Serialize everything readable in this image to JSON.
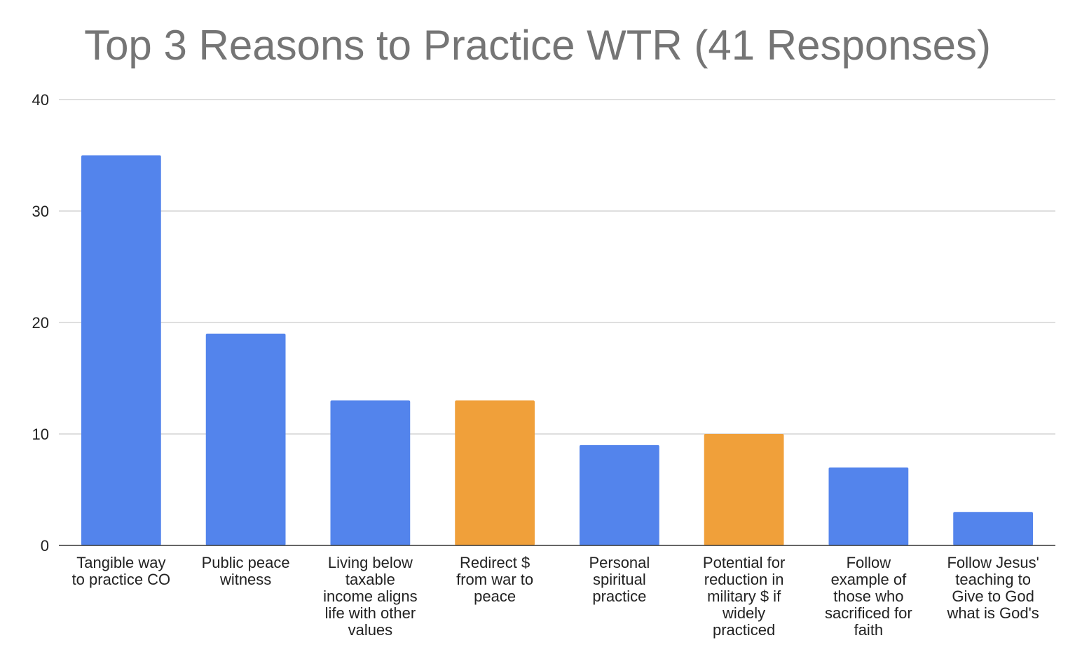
{
  "chart_data": {
    "type": "bar",
    "title": "Top 3 Reasons to Practice WTR (41 Responses)",
    "xlabel": "",
    "ylabel": "",
    "ylim": [
      0,
      40
    ],
    "yticks": [
      0,
      10,
      20,
      30,
      40
    ],
    "grid": true,
    "legend": "none",
    "categories": [
      [
        "Tangible way",
        "to practice CO"
      ],
      [
        "Public peace",
        "witness"
      ],
      [
        "Living below",
        "taxable",
        "income aligns",
        "life with other",
        "values"
      ],
      [
        "Redirect $",
        "from war to",
        "peace"
      ],
      [
        "Personal",
        "spiritual",
        "practice"
      ],
      [
        "Potential for",
        "reduction in",
        "military $ if",
        "widely",
        "practiced"
      ],
      [
        "Follow",
        "example of",
        "those who",
        "sacrificed for",
        "faith"
      ],
      [
        "Follow Jesus'",
        "teaching to",
        "Give to God",
        "what is God's"
      ]
    ],
    "values": [
      35,
      19,
      13,
      13,
      9,
      10,
      7,
      3
    ],
    "bar_colors": [
      "#5384EC",
      "#5384EC",
      "#5384EC",
      "#F0A03A",
      "#5384EC",
      "#F0A03A",
      "#5384EC",
      "#5384EC"
    ],
    "colors": {
      "blue": "#5384EC",
      "orange": "#F0A03A",
      "grid": "#cccccc",
      "axis": "#333333",
      "title": "#757575"
    }
  }
}
